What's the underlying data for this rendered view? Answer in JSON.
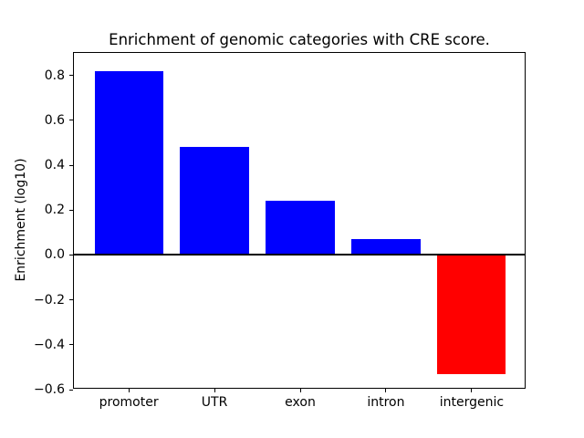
{
  "chart_data": {
    "type": "bar",
    "title": "Enrichment of genomic categories with CRE score.",
    "xlabel": "",
    "ylabel": "Enrichment (log10)",
    "categories": [
      "promoter",
      "UTR",
      "exon",
      "intron",
      "intergenic"
    ],
    "values": [
      0.82,
      0.48,
      0.24,
      0.07,
      -0.53
    ],
    "bar_colors": [
      "#0000ff",
      "#0000ff",
      "#0000ff",
      "#0000ff",
      "#ff0000"
    ],
    "positive_color": "#0000ff",
    "negative_color": "#ff0000",
    "bar_width": 0.8,
    "xlim": [
      -0.64,
      4.64
    ],
    "ylim": [
      -0.6,
      0.9
    ],
    "yticks": [
      -0.6,
      -0.4,
      -0.2,
      0.0,
      0.2,
      0.4,
      0.6,
      0.8
    ],
    "ytick_labels": [
      "−0.6",
      "−0.4",
      "−0.2",
      "0.0",
      "0.2",
      "0.4",
      "0.6",
      "0.8"
    ],
    "grid": false,
    "legend": null,
    "zero_line": true,
    "frame_color": "#000000",
    "background_color": "#ffffff"
  }
}
